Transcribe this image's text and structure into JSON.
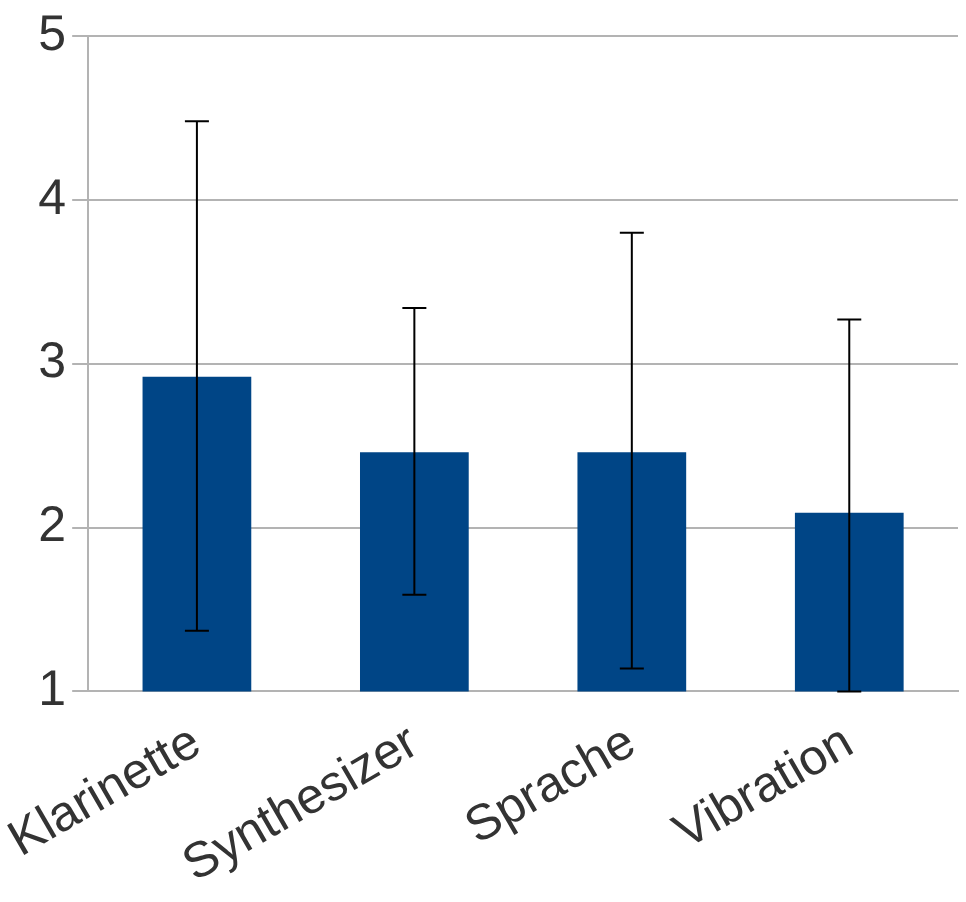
{
  "chart_data": {
    "type": "bar",
    "categories": [
      "Klarinette",
      "Synthesizer",
      "Sprache",
      "Vibration"
    ],
    "series": [
      {
        "color": "#004586",
        "values": [
          2.92,
          2.46,
          2.46,
          2.09
        ],
        "errors": [
          [
            1.37,
            4.48
          ],
          [
            1.59,
            3.34
          ],
          [
            1.14,
            3.8
          ],
          [
            1,
            3.27
          ]
        ]
      }
    ],
    "ylim": [
      1,
      5
    ],
    "yticks": [
      1,
      2,
      3,
      4,
      5
    ],
    "grid": "y",
    "legend": false
  }
}
